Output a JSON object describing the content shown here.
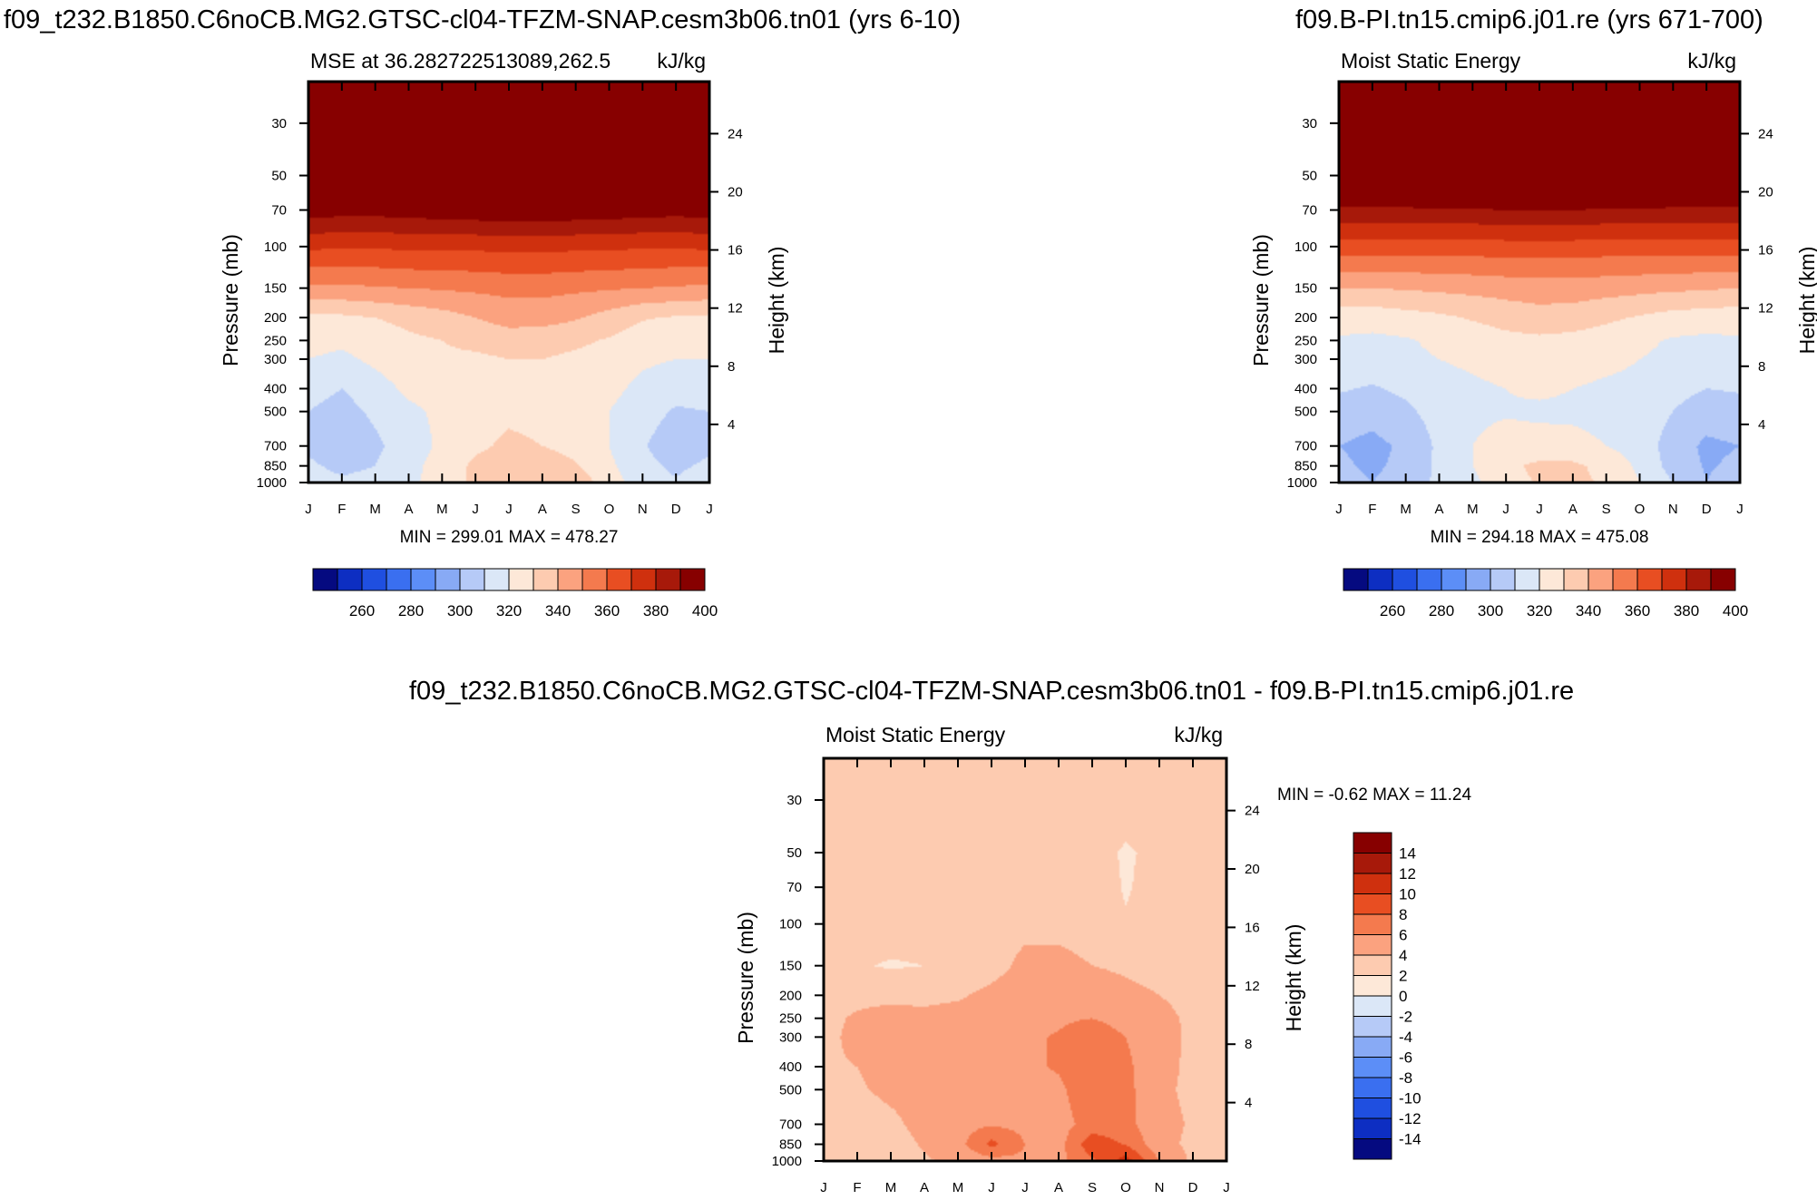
{
  "titles": {
    "left": "f09_t232.B1850.C6noCB.MG2.GTSC-cl04-TFZM-SNAP.cesm3b06.tn01 (yrs 6-10)",
    "right": "f09.B-PI.tn15.cmip6.j01.re (yrs 671-700)",
    "bottom": "f09_t232.B1850.C6noCB.MG2.GTSC-cl04-TFZM-SNAP.cesm3b06.tn01 - f09.B-PI.tn15.cmip6.j01.re"
  },
  "colors": {
    "abs_levels": [
      "#050a80",
      "#0d2ec2",
      "#1f4fe0",
      "#3a6ff0",
      "#5c8ef7",
      "#88aaf5",
      "#b6caf7",
      "#dbe7f7",
      "#fde8d8",
      "#fdcbb0",
      "#fba27f",
      "#f47a4e",
      "#e84e22",
      "#cf300e",
      "#a7190a",
      "#870000"
    ],
    "diff_levels": [
      "#050a80",
      "#0d2ec2",
      "#1f4fe0",
      "#3a6ff0",
      "#5c8ef7",
      "#88aaf5",
      "#b6caf7",
      "#dbe7f7",
      "#fde8d8",
      "#fdcbb0",
      "#fba27f",
      "#f47a4e",
      "#e84e22",
      "#cf300e",
      "#a7190a",
      "#870000"
    ]
  },
  "chart_data": [
    {
      "type": "contour",
      "title": "MSE at 36.282722513089,262.5",
      "units": "kJ/kg",
      "ylabel": "Pressure (mb)",
      "ylabel_right": "Height (km)",
      "x_ticklabels": [
        "J",
        "F",
        "M",
        "A",
        "M",
        "J",
        "J",
        "A",
        "S",
        "O",
        "N",
        "D",
        "J"
      ],
      "y_ticks": [
        30,
        50,
        70,
        100,
        150,
        200,
        250,
        300,
        400,
        500,
        700,
        850,
        1000
      ],
      "yr_ticks": [
        4,
        8,
        12,
        16,
        20,
        24
      ],
      "stats": "MIN = 299.01 MAX = 478.27",
      "colorbar_labels": [
        "260",
        "280",
        "300",
        "320",
        "340",
        "360",
        "380",
        "400"
      ],
      "levels": [
        250,
        260,
        270,
        280,
        290,
        300,
        310,
        320,
        330,
        340,
        350,
        360,
        370,
        380,
        390,
        400
      ],
      "grid_pressures": [
        1000,
        850,
        700,
        500,
        400,
        300,
        250,
        200,
        150,
        100,
        70,
        50,
        30,
        20
      ],
      "grid": [
        [
          316,
          312,
          314,
          318,
          324,
          332,
          338,
          340,
          336,
          325,
          314,
          311,
          316
        ],
        [
          312,
          307,
          310,
          317,
          324,
          332,
          336,
          337,
          331,
          322,
          313,
          308,
          312
        ],
        [
          308,
          302,
          308,
          315,
          322,
          328,
          332,
          330,
          326,
          320,
          311,
          304,
          308
        ],
        [
          310,
          306,
          312,
          318,
          322,
          326,
          328,
          327,
          325,
          320,
          314,
          309,
          310
        ],
        [
          314,
          310,
          316,
          322,
          324,
          326,
          326,
          326,
          325,
          323,
          317,
          313,
          314
        ],
        [
          320,
          318,
          322,
          326,
          328,
          328,
          330,
          330,
          328,
          326,
          322,
          320,
          320
        ],
        [
          323,
          322,
          324,
          328,
          330,
          333,
          335,
          334,
          332,
          329,
          324,
          323,
          323
        ],
        [
          328,
          328,
          330,
          333,
          336,
          340,
          344,
          344,
          341,
          336,
          331,
          329,
          328
        ],
        [
          348,
          348,
          349,
          350,
          351,
          352,
          353,
          353,
          352,
          351,
          350,
          349,
          348
        ],
        [
          372,
          371,
          371,
          372,
          372,
          372,
          373,
          373,
          372,
          372,
          371,
          371,
          372
        ],
        [
          395,
          394,
          394,
          395,
          396,
          397,
          398,
          398,
          397,
          396,
          395,
          394,
          395
        ],
        [
          420,
          420,
          420,
          420,
          420,
          420,
          420,
          420,
          420,
          420,
          420,
          420,
          420
        ],
        [
          450,
          450,
          450,
          450,
          450,
          450,
          450,
          450,
          450,
          450,
          450,
          450,
          450
        ],
        [
          475,
          475,
          475,
          475,
          475,
          475,
          475,
          475,
          475,
          475,
          475,
          475,
          475
        ]
      ]
    },
    {
      "type": "contour",
      "title": "Moist Static Energy",
      "units": "kJ/kg",
      "ylabel": "Pressure (mb)",
      "ylabel_right": "Height (km)",
      "x_ticklabels": [
        "J",
        "F",
        "M",
        "A",
        "M",
        "J",
        "J",
        "A",
        "S",
        "O",
        "N",
        "D",
        "J"
      ],
      "y_ticks": [
        30,
        50,
        70,
        100,
        150,
        200,
        250,
        300,
        400,
        500,
        700,
        850,
        1000
      ],
      "yr_ticks": [
        4,
        8,
        12,
        16,
        20,
        24
      ],
      "stats": "MIN = 294.18 MAX = 475.08",
      "colorbar_labels": [
        "260",
        "280",
        "300",
        "320",
        "340",
        "360",
        "380",
        "400"
      ],
      "levels": [
        250,
        260,
        270,
        280,
        290,
        300,
        310,
        320,
        330,
        340,
        350,
        360,
        370,
        380,
        390,
        400
      ],
      "grid_pressures": [
        1000,
        850,
        700,
        500,
        400,
        300,
        250,
        200,
        150,
        100,
        70,
        50,
        30,
        20
      ],
      "grid": [
        [
          305,
          300,
          305,
          312,
          318,
          326,
          331,
          332,
          329,
          320,
          310,
          300,
          305
        ],
        [
          302,
          298,
          303,
          312,
          320,
          328,
          332,
          332,
          327,
          318,
          306,
          299,
          302
        ],
        [
          300,
          297,
          302,
          312,
          320,
          324,
          324,
          323,
          320,
          316,
          305,
          298,
          300
        ],
        [
          306,
          304,
          308,
          314,
          318,
          319,
          318,
          318,
          317,
          316,
          310,
          305,
          306
        ],
        [
          311,
          309,
          312,
          316,
          318,
          320,
          322,
          320,
          318,
          317,
          313,
          310,
          311
        ],
        [
          318,
          316,
          318,
          320,
          322,
          325,
          326,
          325,
          323,
          320,
          318,
          317,
          318
        ],
        [
          319,
          318,
          319,
          322,
          324,
          327,
          328,
          327,
          325,
          322,
          319,
          318,
          319
        ],
        [
          324,
          324,
          326,
          328,
          331,
          334,
          336,
          335,
          332,
          329,
          326,
          325,
          324
        ],
        [
          340,
          340,
          341,
          342,
          343,
          344,
          345,
          345,
          344,
          343,
          342,
          341,
          340
        ],
        [
          365,
          365,
          365,
          365,
          365,
          366,
          366,
          366,
          365,
          365,
          365,
          365,
          365
        ],
        [
          388,
          388,
          388,
          389,
          389,
          390,
          390,
          390,
          389,
          389,
          388,
          388,
          388
        ],
        [
          415,
          415,
          415,
          415,
          415,
          415,
          415,
          415,
          415,
          415,
          415,
          415,
          415
        ],
        [
          448,
          448,
          448,
          448,
          448,
          448,
          448,
          448,
          448,
          448,
          448,
          448,
          448
        ],
        [
          472,
          472,
          472,
          472,
          472,
          472,
          472,
          472,
          472,
          472,
          472,
          472,
          472
        ]
      ]
    },
    {
      "type": "contour",
      "title": "Moist Static Energy",
      "units": "kJ/kg",
      "ylabel": "Pressure (mb)",
      "ylabel_right": "Height (km)",
      "x_ticklabels": [
        "J",
        "F",
        "M",
        "A",
        "M",
        "J",
        "J",
        "A",
        "S",
        "O",
        "N",
        "D",
        "J"
      ],
      "y_ticks": [
        30,
        50,
        70,
        100,
        150,
        200,
        250,
        300,
        400,
        500,
        700,
        850,
        1000
      ],
      "yr_ticks": [
        4,
        8,
        12,
        16,
        20,
        24
      ],
      "stats": "MIN =  -0.62 MAX =  11.24",
      "colorbar_labels": [
        "14",
        "12",
        "10",
        "8",
        "6",
        "4",
        "2",
        "0",
        "-2",
        "-4",
        "-6",
        "-8",
        "-10",
        "-12",
        "-14"
      ],
      "levels": [
        -14,
        -12,
        -10,
        -8,
        -6,
        -4,
        -2,
        0,
        2,
        4,
        6,
        8,
        10,
        12,
        14
      ],
      "grid_pressures": [
        1000,
        850,
        700,
        500,
        400,
        300,
        250,
        200,
        150,
        100,
        70,
        50,
        30,
        20
      ],
      "grid": [
        [
          3.0,
          2.6,
          3.2,
          3.8,
          4.4,
          5.2,
          5.6,
          5.4,
          7.6,
          11.0,
          6.0,
          3.6,
          3.0
        ],
        [
          3.2,
          2.2,
          3.2,
          4.2,
          5.2,
          8.6,
          6.0,
          5.2,
          9.4,
          7.8,
          4.6,
          3.6,
          3.2
        ],
        [
          3.4,
          3.0,
          3.6,
          4.6,
          5.2,
          5.8,
          5.4,
          5.2,
          6.8,
          6.6,
          4.6,
          3.8,
          3.4
        ],
        [
          3.6,
          3.8,
          4.4,
          4.6,
          5.0,
          5.2,
          5.2,
          5.6,
          7.4,
          6.6,
          4.4,
          3.6,
          3.6
        ],
        [
          3.8,
          4.0,
          4.6,
          4.2,
          4.6,
          5.2,
          5.6,
          6.2,
          7.6,
          6.4,
          4.6,
          3.6,
          3.8
        ],
        [
          3.6,
          4.4,
          4.6,
          4.6,
          4.8,
          5.2,
          5.6,
          6.2,
          7.6,
          6.0,
          4.8,
          3.6,
          3.6
        ],
        [
          3.6,
          4.2,
          4.6,
          4.4,
          4.6,
          5.0,
          5.4,
          5.6,
          6.0,
          5.0,
          4.6,
          3.6,
          3.6
        ],
        [
          3.4,
          3.6,
          3.6,
          3.6,
          3.8,
          4.4,
          5.0,
          5.0,
          5.4,
          4.6,
          4.0,
          3.4,
          3.4
        ],
        [
          3.0,
          2.2,
          1.8,
          2.0,
          2.8,
          3.4,
          4.4,
          4.4,
          4.0,
          3.6,
          3.2,
          2.6,
          3.0
        ],
        [
          3.6,
          3.4,
          3.0,
          3.0,
          2.8,
          3.4,
          3.6,
          3.6,
          3.4,
          2.2,
          2.8,
          3.4,
          3.6
        ],
        [
          3.6,
          3.2,
          2.8,
          3.0,
          3.4,
          3.6,
          3.6,
          3.6,
          3.2,
          1.8,
          2.8,
          3.4,
          3.6
        ],
        [
          3.2,
          2.4,
          2.0,
          2.0,
          3.2,
          3.6,
          3.6,
          3.6,
          2.6,
          1.8,
          2.4,
          2.6,
          3.2
        ],
        [
          3.4,
          2.8,
          2.4,
          3.0,
          3.4,
          3.6,
          3.6,
          3.6,
          3.2,
          2.8,
          2.8,
          3.0,
          3.4
        ],
        [
          3.6,
          3.4,
          3.2,
          3.4,
          3.6,
          3.8,
          3.6,
          3.6,
          3.6,
          3.6,
          3.6,
          3.6,
          3.6
        ]
      ]
    }
  ]
}
